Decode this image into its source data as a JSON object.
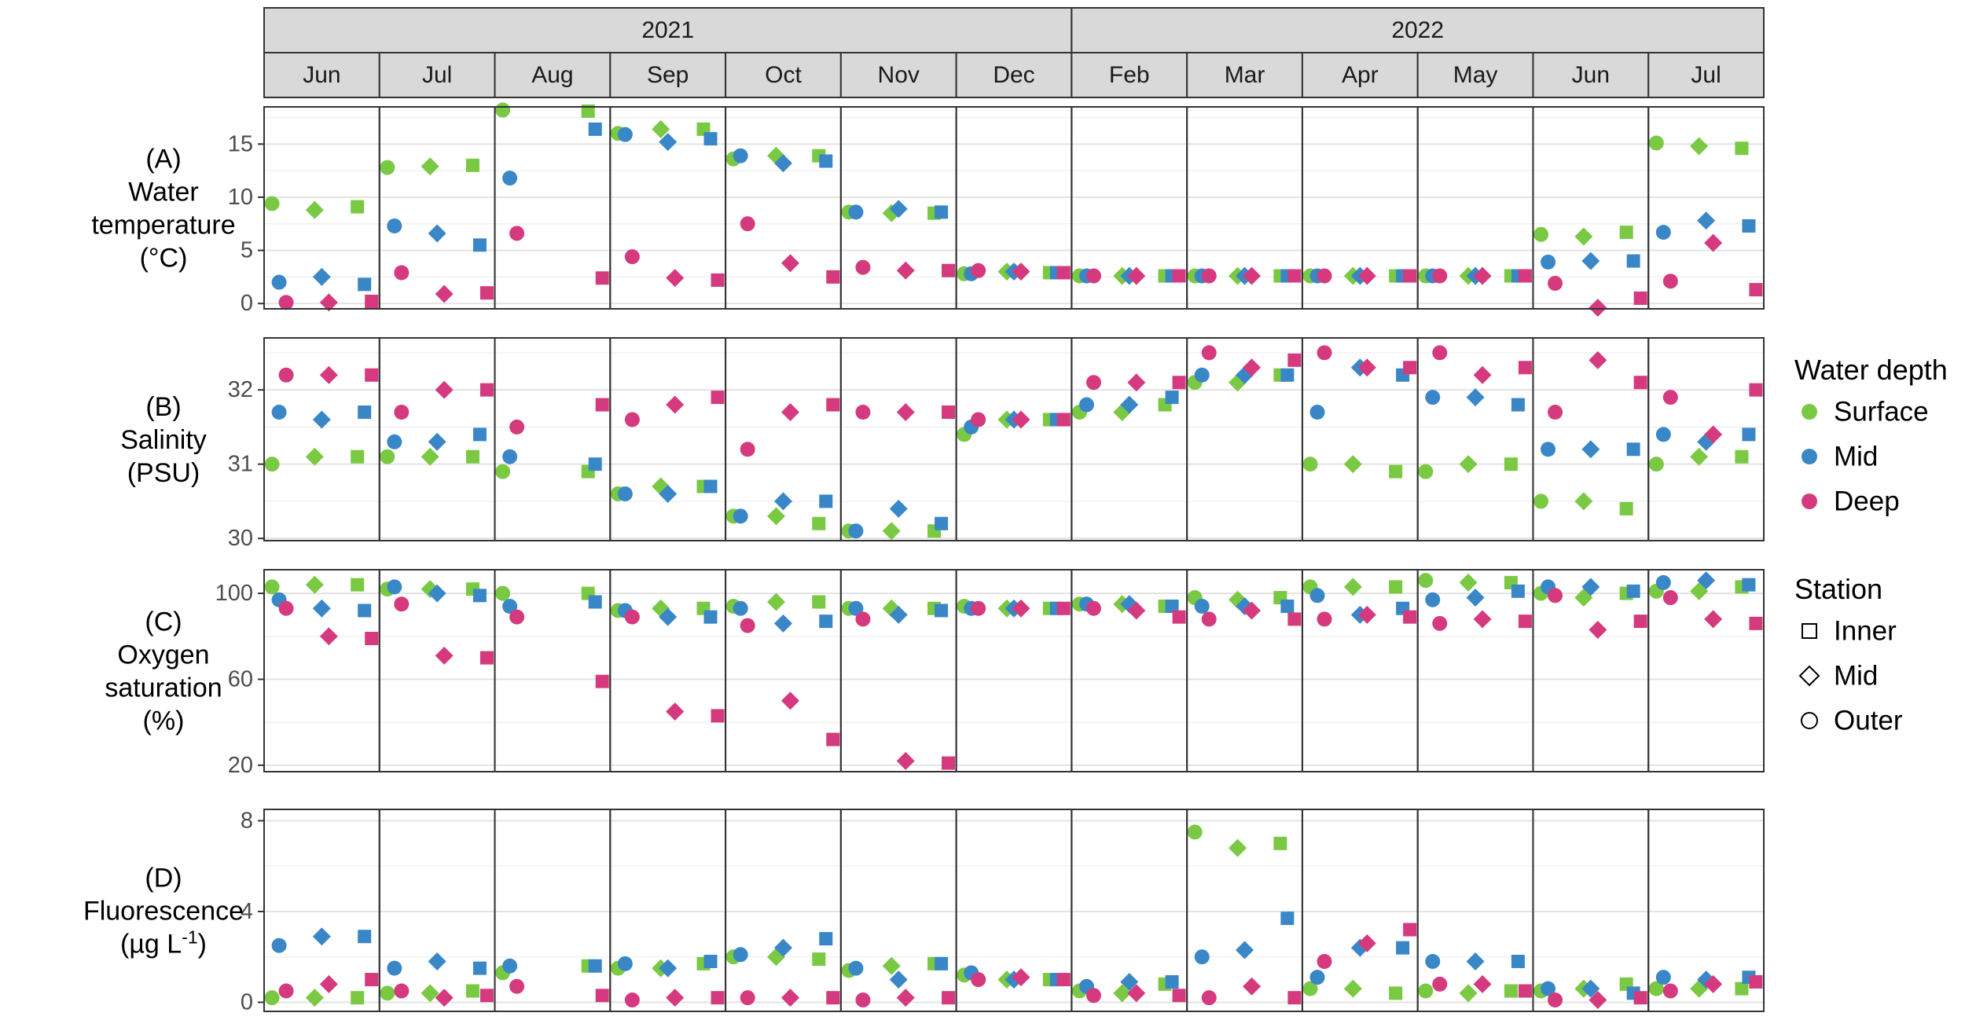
{
  "chart_data": {
    "type": "scatter",
    "years": [
      {
        "label": "2021",
        "months": [
          "Jun",
          "Jul",
          "Aug",
          "Sep",
          "Oct",
          "Nov",
          "Dec"
        ]
      },
      {
        "label": "2022",
        "months": [
          "Feb",
          "Mar",
          "Apr",
          "May",
          "Jun",
          "Jul"
        ]
      }
    ],
    "stations": [
      "Outer",
      "Mid",
      "Inner"
    ],
    "depths": [
      "Surface",
      "Mid",
      "Deep"
    ],
    "colors": {
      "Surface": "#7ac943",
      "Mid": "#3a87c8",
      "Deep": "#d63a7e"
    },
    "legend": {
      "depth_title": "Water depth",
      "depth_items": [
        "Surface",
        "Mid",
        "Deep"
      ],
      "station_title": "Station",
      "station_items": [
        "Inner",
        "Mid",
        "Outer"
      ]
    },
    "panels": [
      {
        "id": "A",
        "ylabel": [
          "(A)",
          "Water",
          "temperature",
          "(°C)"
        ],
        "ylim": [
          -0.5,
          18.5
        ],
        "yticks": [
          0,
          5,
          10,
          15
        ],
        "grid": true,
        "points": [
          [
            [
              9.4,
              2.0,
              0.1
            ],
            [
              8.8,
              2.5,
              0.1
            ],
            [
              9.1,
              1.8,
              0.2
            ]
          ],
          [
            [
              12.8,
              7.3,
              2.9
            ],
            [
              12.9,
              6.6,
              0.9
            ],
            [
              13.0,
              5.5,
              1.0
            ]
          ],
          [
            [
              18.2,
              11.8,
              6.6
            ],
            [
              null,
              null,
              null
            ],
            [
              18.1,
              16.4,
              2.4
            ]
          ],
          [
            [
              16.0,
              15.9,
              4.4
            ],
            [
              16.4,
              15.2,
              2.4
            ],
            [
              16.4,
              15.5,
              2.2
            ]
          ],
          [
            [
              13.6,
              13.9,
              7.5
            ],
            [
              13.9,
              13.2,
              3.8
            ],
            [
              13.9,
              13.4,
              2.5
            ]
          ],
          [
            [
              8.6,
              8.6,
              3.4
            ],
            [
              8.5,
              8.9,
              3.1
            ],
            [
              8.5,
              8.6,
              3.1
            ]
          ],
          [
            [
              2.8,
              2.8,
              3.1
            ],
            [
              3.0,
              3.0,
              3.0
            ],
            [
              2.9,
              2.9,
              2.9
            ]
          ],
          [
            [
              2.6,
              2.6,
              2.6
            ],
            [
              2.6,
              2.6,
              2.6
            ],
            [
              2.6,
              2.6,
              2.6
            ]
          ],
          [
            [
              2.6,
              2.6,
              2.6
            ],
            [
              2.6,
              2.6,
              2.6
            ],
            [
              2.6,
              2.6,
              2.6
            ]
          ],
          [
            [
              2.6,
              2.6,
              2.6
            ],
            [
              2.6,
              2.6,
              2.6
            ],
            [
              2.6,
              2.6,
              2.6
            ]
          ],
          [
            [
              2.6,
              2.6,
              2.6
            ],
            [
              2.6,
              2.6,
              2.6
            ],
            [
              2.6,
              2.6,
              2.6
            ]
          ],
          [
            [
              6.5,
              3.9,
              1.9
            ],
            [
              6.3,
              4.0,
              -0.4
            ],
            [
              6.7,
              4.0,
              0.5
            ]
          ],
          [
            [
              15.1,
              6.7,
              2.1
            ],
            [
              14.8,
              7.8,
              5.7
            ],
            [
              14.6,
              7.3,
              1.3
            ]
          ]
        ]
      },
      {
        "id": "B",
        "ylabel": [
          "(B)",
          "Salinity",
          "(PSU)"
        ],
        "ylim": [
          29.97,
          32.7
        ],
        "yticks": [
          30,
          31,
          32
        ],
        "grid": true,
        "points": [
          [
            [
              31.0,
              31.7,
              32.2
            ],
            [
              31.1,
              31.6,
              32.2
            ],
            [
              31.1,
              31.7,
              32.2
            ]
          ],
          [
            [
              31.1,
              31.3,
              31.7
            ],
            [
              31.1,
              31.3,
              32.0
            ],
            [
              31.1,
              31.4,
              32.0
            ]
          ],
          [
            [
              30.9,
              31.1,
              31.5
            ],
            [
              null,
              null,
              null
            ],
            [
              30.9,
              31.0,
              31.8
            ]
          ],
          [
            [
              30.6,
              30.6,
              31.6
            ],
            [
              30.7,
              30.6,
              31.8
            ],
            [
              30.7,
              30.7,
              31.9
            ]
          ],
          [
            [
              30.3,
              30.3,
              31.2
            ],
            [
              30.3,
              30.5,
              31.7
            ],
            [
              30.2,
              30.5,
              31.8
            ]
          ],
          [
            [
              30.1,
              30.1,
              31.7
            ],
            [
              30.1,
              30.4,
              31.7
            ],
            [
              30.1,
              30.2,
              31.7
            ]
          ],
          [
            [
              31.4,
              31.5,
              31.6
            ],
            [
              31.6,
              31.6,
              31.6
            ],
            [
              31.6,
              31.6,
              31.6
            ]
          ],
          [
            [
              31.7,
              31.8,
              32.1
            ],
            [
              31.7,
              31.8,
              32.1
            ],
            [
              31.8,
              31.9,
              32.1
            ]
          ],
          [
            [
              32.1,
              32.2,
              32.5
            ],
            [
              32.1,
              32.2,
              32.3
            ],
            [
              32.2,
              32.2,
              32.4
            ]
          ],
          [
            [
              31.0,
              31.7,
              32.5
            ],
            [
              31.0,
              32.3,
              32.3
            ],
            [
              30.9,
              32.2,
              32.3
            ]
          ],
          [
            [
              30.9,
              31.9,
              32.5
            ],
            [
              31.0,
              31.9,
              32.2
            ],
            [
              31.0,
              31.8,
              32.3
            ]
          ],
          [
            [
              30.5,
              31.2,
              31.7
            ],
            [
              30.5,
              31.2,
              32.4
            ],
            [
              30.4,
              31.2,
              32.1
            ]
          ],
          [
            [
              31.0,
              31.4,
              31.9
            ],
            [
              31.1,
              31.3,
              31.4
            ],
            [
              31.1,
              31.4,
              32.0
            ]
          ]
        ]
      },
      {
        "id": "C",
        "ylabel": [
          "(C)",
          "Oxygen",
          "saturation",
          "(%)"
        ],
        "ylim": [
          17,
          111
        ],
        "yticks": [
          20,
          60,
          100
        ],
        "grid": true,
        "points": [
          [
            [
              103,
              97,
              93
            ],
            [
              104,
              93,
              80
            ],
            [
              104,
              92,
              79
            ]
          ],
          [
            [
              102,
              103,
              95
            ],
            [
              102,
              100,
              71
            ],
            [
              102,
              99,
              70
            ]
          ],
          [
            [
              100,
              94,
              89
            ],
            [
              null,
              null,
              null
            ],
            [
              100,
              96,
              59
            ]
          ],
          [
            [
              92,
              92,
              89
            ],
            [
              93,
              89,
              45
            ],
            [
              93,
              89,
              43
            ]
          ],
          [
            [
              94,
              93,
              85
            ],
            [
              96,
              86,
              50
            ],
            [
              96,
              87,
              32
            ]
          ],
          [
            [
              93,
              93,
              88
            ],
            [
              93,
              90,
              22
            ],
            [
              93,
              92,
              21
            ]
          ],
          [
            [
              94,
              93,
              93
            ],
            [
              93,
              93,
              93
            ],
            [
              93,
              93,
              93
            ]
          ],
          [
            [
              95,
              95,
              93
            ],
            [
              95,
              95,
              92
            ],
            [
              94,
              94,
              89
            ]
          ],
          [
            [
              98,
              94,
              88
            ],
            [
              97,
              94,
              92
            ],
            [
              98,
              94,
              88
            ]
          ],
          [
            [
              103,
              99,
              88
            ],
            [
              103,
              90,
              90
            ],
            [
              103,
              93,
              89
            ]
          ],
          [
            [
              106,
              97,
              86
            ],
            [
              105,
              98,
              88
            ],
            [
              105,
              101,
              87
            ]
          ],
          [
            [
              100,
              103,
              99
            ],
            [
              98,
              103,
              83
            ],
            [
              100,
              101,
              87
            ]
          ],
          [
            [
              101,
              105,
              98
            ],
            [
              101,
              106,
              88
            ],
            [
              103,
              104,
              86
            ]
          ]
        ]
      },
      {
        "id": "D",
        "ylabel": [
          "(D)",
          "Fluorescence",
          "(µg L-1)"
        ],
        "ylabel_sup": "-1",
        "ylim": [
          -0.4,
          8.5
        ],
        "yticks": [
          0,
          4,
          8
        ],
        "grid": true,
        "points": [
          [
            [
              0.2,
              2.5,
              0.5
            ],
            [
              0.2,
              2.9,
              0.8
            ],
            [
              0.2,
              2.9,
              1.0
            ]
          ],
          [
            [
              0.4,
              1.5,
              0.5
            ],
            [
              0.4,
              1.8,
              0.2
            ],
            [
              0.5,
              1.5,
              0.3
            ]
          ],
          [
            [
              1.3,
              1.6,
              0.7
            ],
            [
              null,
              null,
              null
            ],
            [
              1.6,
              1.6,
              0.3
            ]
          ],
          [
            [
              1.5,
              1.7,
              0.1
            ],
            [
              1.5,
              1.5,
              0.2
            ],
            [
              1.7,
              1.8,
              0.2
            ]
          ],
          [
            [
              2.0,
              2.1,
              0.2
            ],
            [
              2.0,
              2.4,
              0.2
            ],
            [
              1.9,
              2.8,
              0.2
            ]
          ],
          [
            [
              1.4,
              1.5,
              0.1
            ],
            [
              1.6,
              1.0,
              0.2
            ],
            [
              1.7,
              1.7,
              0.2
            ]
          ],
          [
            [
              1.2,
              1.3,
              1.0
            ],
            [
              1.0,
              1.0,
              1.1
            ],
            [
              1.0,
              1.0,
              1.0
            ]
          ],
          [
            [
              0.5,
              0.7,
              0.3
            ],
            [
              0.4,
              0.9,
              0.4
            ],
            [
              0.8,
              0.9,
              0.3
            ]
          ],
          [
            [
              7.5,
              2.0,
              0.2
            ],
            [
              6.8,
              2.3,
              0.7
            ],
            [
              7.0,
              3.7,
              0.2
            ]
          ],
          [
            [
              0.6,
              1.1,
              1.8
            ],
            [
              0.6,
              2.4,
              2.6
            ],
            [
              0.4,
              2.4,
              3.2
            ]
          ],
          [
            [
              0.5,
              1.8,
              0.8
            ],
            [
              0.4,
              1.8,
              0.8
            ],
            [
              0.5,
              1.8,
              0.5
            ]
          ],
          [
            [
              0.5,
              0.6,
              0.1
            ],
            [
              0.6,
              0.6,
              0.1
            ],
            [
              0.8,
              0.4,
              0.2
            ]
          ],
          [
            [
              0.6,
              1.1,
              0.5
            ],
            [
              0.6,
              1.0,
              0.8
            ],
            [
              0.6,
              1.1,
              0.9
            ]
          ]
        ]
      }
    ]
  }
}
